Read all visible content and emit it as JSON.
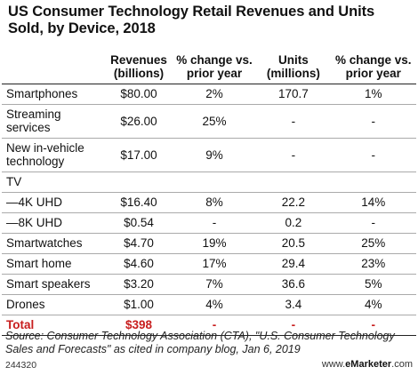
{
  "chart_data": {
    "type": "table",
    "title": "US Consumer Technology Retail Revenues and Units Sold, by Device, 2018",
    "columns": [
      "",
      "Revenues (billions)",
      "% change vs. prior year",
      "Units (millions)",
      "% change vs. prior year"
    ],
    "rows": [
      {
        "label": "Smartphones",
        "cells": [
          "$80.00",
          "2%",
          "170.7",
          "1%"
        ]
      },
      {
        "label": "Streaming services",
        "cells": [
          "$26.00",
          "25%",
          "-",
          "-"
        ]
      },
      {
        "label": "New in-vehicle technology",
        "cells": [
          "$17.00",
          "9%",
          "-",
          "-"
        ]
      },
      {
        "label": "TV",
        "cells": [
          "",
          "",
          "",
          ""
        ]
      },
      {
        "label": "—4K UHD",
        "cells": [
          "$16.40",
          "8%",
          "22.2",
          "14%"
        ]
      },
      {
        "label": "—8K UHD",
        "cells": [
          "$0.54",
          "-",
          "0.2",
          "-"
        ]
      },
      {
        "label": "Smartwatches",
        "cells": [
          "$4.70",
          "19%",
          "20.5",
          "25%"
        ]
      },
      {
        "label": "Smart home",
        "cells": [
          "$4.60",
          "17%",
          "29.4",
          "23%"
        ]
      },
      {
        "label": "Smart speakers",
        "cells": [
          "$3.20",
          "7%",
          "36.6",
          "5%"
        ]
      },
      {
        "label": "Drones",
        "cells": [
          "$1.00",
          "4%",
          "3.4",
          "4%"
        ]
      },
      {
        "label": "Total",
        "cells": [
          "$398",
          "-",
          "-",
          "-"
        ]
      }
    ],
    "accent_color": "#c81e1e"
  },
  "header": {
    "revenues": "Revenues (billions)",
    "rev_change": "% change vs. prior year",
    "units": "Units (millions)",
    "units_change": "% change vs. prior year"
  },
  "source": "Source: Consumer Technology Association (CTA), \"U.S. Consumer Technology Sales and Forecasts\" as cited in company blog, Jan 6, 2019",
  "chart_id": "244320",
  "brand_prefix": "www.",
  "brand_name": "eMarketer",
  "brand_suffix": ".com"
}
